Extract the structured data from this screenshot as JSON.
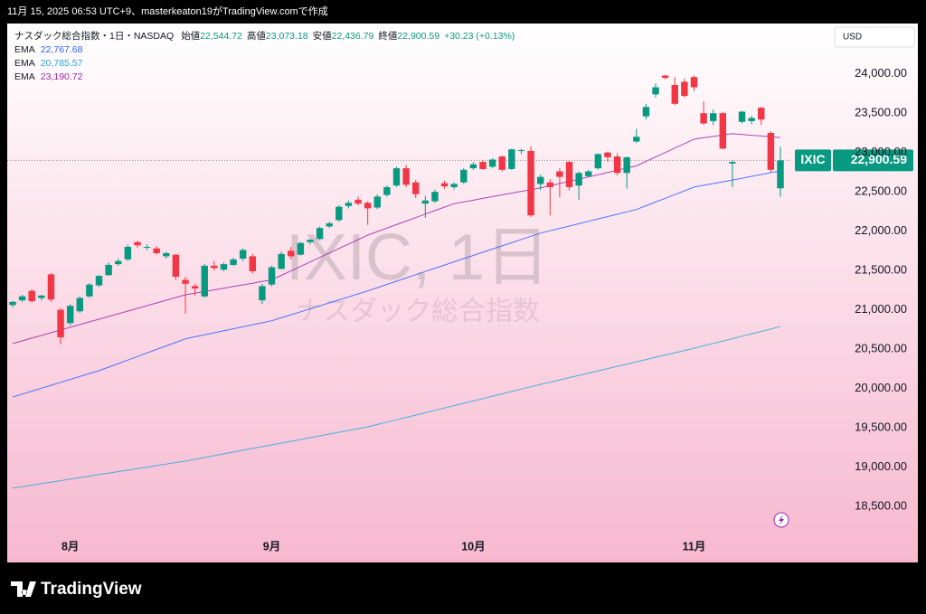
{
  "caption": "11月 15, 2025 06:53 UTC+9、masterkeaton19がTradingView.comで作成",
  "brand": "TradingView",
  "chart_data": {
    "type": "candlestick",
    "symbol_name": "ナスダック総合指数・1日・NASDAQ",
    "ohlc": [
      {
        "label": "始値",
        "value": "22,544.72"
      },
      {
        "label": "高値",
        "value": "23,073.18"
      },
      {
        "label": "安値",
        "value": "22,436.79"
      },
      {
        "label": "終値",
        "value": "22,900.59"
      }
    ],
    "change": "+30.23 (+0.13%)",
    "currency": "USD",
    "watermark": "IXIC, 1日",
    "watermark_sub": "ナスダック総合指数",
    "categories": [
      null,
      null,
      null,
      null,
      null,
      null,
      "8月",
      null,
      null,
      null,
      null,
      null,
      null,
      null,
      null,
      null,
      null,
      null,
      null,
      null,
      null,
      null,
      null,
      null,
      null,
      null,
      null,
      "9月",
      null,
      null,
      null,
      null,
      null,
      null,
      null,
      null,
      null,
      null,
      null,
      null,
      null,
      null,
      null,
      null,
      null,
      null,
      null,
      null,
      "10月",
      null,
      null,
      null,
      null,
      null,
      null,
      null,
      null,
      null,
      null,
      null,
      null,
      null,
      null,
      null,
      null,
      null,
      null,
      null,
      null,
      null,
      null,
      "11月",
      null,
      null,
      null,
      null,
      null,
      null,
      null,
      null,
      null
    ],
    "up_color": "#089981",
    "down_color": "#f23645",
    "candles": {
      "open": [
        21060,
        21120,
        21240,
        21150,
        21450,
        21000,
        20830,
        20980,
        21170,
        21310,
        21440,
        21580,
        21640,
        21860,
        21790,
        21780,
        21680,
        21700,
        21380,
        21300,
        21170,
        21560,
        21510,
        21570,
        21650,
        21680,
        21120,
        21320,
        21520,
        21750,
        21700,
        21860,
        21900,
        22060,
        22140,
        22320,
        22400,
        22360,
        22300,
        22460,
        22580,
        22800,
        22620,
        22350,
        22380,
        22610,
        22560,
        22620,
        22800,
        22880,
        22820,
        22950,
        22790,
        23020,
        23020,
        22600,
        22620,
        22760,
        22880,
        22580,
        22700,
        22800,
        23000,
        22950,
        22740,
        23140,
        23460,
        23740,
        23980,
        23860,
        23900,
        23960,
        23500,
        23400,
        23500,
        22860,
        23390,
        23400,
        23570,
        23250,
        22544.72
      ],
      "high": [
        21110,
        21190,
        21260,
        21190,
        21470,
        21020,
        21070,
        21170,
        21340,
        21440,
        21600,
        21650,
        21830,
        21880,
        21830,
        21810,
        21740,
        21710,
        21420,
        21330,
        21580,
        21620,
        21600,
        21660,
        21780,
        21710,
        21330,
        21560,
        21740,
        21800,
        21860,
        21900,
        22060,
        22120,
        22330,
        22390,
        22440,
        22380,
        22470,
        22580,
        22820,
        22840,
        22650,
        22450,
        22530,
        22640,
        22620,
        22800,
        22880,
        22900,
        22930,
        22960,
        23050,
        23050,
        23080,
        22720,
        22660,
        22800,
        22890,
        22760,
        22780,
        22990,
        23010,
        22990,
        22950,
        23300,
        23620,
        23880,
        23990,
        23960,
        23940,
        23980,
        23650,
        23550,
        23520,
        22900,
        23530,
        23470,
        23580,
        23270,
        23073.18
      ],
      "low": [
        21030,
        21100,
        21090,
        21120,
        21100,
        20560,
        20800,
        20960,
        21150,
        21290,
        21430,
        21560,
        21620,
        21790,
        21760,
        21700,
        21650,
        21380,
        20950,
        21180,
        21150,
        21500,
        21490,
        21560,
        21620,
        21460,
        21070,
        21300,
        21510,
        21640,
        21690,
        21830,
        21880,
        22040,
        22120,
        22290,
        22330,
        22080,
        22280,
        22440,
        22560,
        22560,
        22420,
        22170,
        22360,
        22540,
        22530,
        22600,
        22780,
        22780,
        22800,
        22760,
        22780,
        22980,
        22180,
        22520,
        22200,
        22430,
        22520,
        22400,
        22690,
        22780,
        22880,
        22710,
        22540,
        23120,
        23420,
        23700,
        23930,
        23600,
        23700,
        23780,
        23350,
        23350,
        23040,
        22560,
        23370,
        23360,
        23350,
        22750,
        22436.79
      ],
      "close": [
        21100,
        21170,
        21110,
        21180,
        21130,
        20650,
        21050,
        21150,
        21320,
        21430,
        21570,
        21620,
        21800,
        21820,
        21800,
        21720,
        21720,
        21420,
        21330,
        21270,
        21560,
        21530,
        21580,
        21640,
        21760,
        21490,
        21300,
        21540,
        21710,
        21680,
        21850,
        21890,
        22040,
        22100,
        22310,
        22360,
        22350,
        22290,
        22440,
        22560,
        22800,
        22590,
        22470,
        22390,
        22500,
        22570,
        22600,
        22780,
        22850,
        22790,
        22910,
        22780,
        23040,
        23030,
        22200,
        22690,
        22560,
        22690,
        22560,
        22740,
        22760,
        22980,
        22940,
        22740,
        22940,
        23200,
        23580,
        23830,
        23950,
        23620,
        23720,
        23830,
        23370,
        23500,
        23050,
        22880,
        23520,
        23440,
        23420,
        22780,
        22900.59
      ]
    },
    "lines": [
      {
        "name": "EMA",
        "color": "#2962ff",
        "value_label": "22,767.68",
        "values": [
          19890,
          19927,
          19964,
          20002,
          20039,
          20076,
          20113,
          20151,
          20188,
          20225,
          20270,
          20315,
          20360,
          20405,
          20450,
          20495,
          20540,
          20585,
          20630,
          20656,
          20681,
          20707,
          20732,
          20758,
          20783,
          20809,
          20834,
          20860,
          20898,
          20936,
          20974,
          21012,
          21050,
          21088,
          21126,
          21164,
          21202,
          21240,
          21281,
          21322,
          21363,
          21404,
          21446,
          21487,
          21528,
          21569,
          21610,
          21651,
          21691,
          21732,
          21772,
          21813,
          21853,
          21894,
          21934,
          21975,
          22005,
          22035,
          22065,
          22095,
          22125,
          22155,
          22185,
          22215,
          22245,
          22275,
          22323,
          22370,
          22418,
          22465,
          22513,
          22560,
          22583,
          22605,
          22628,
          22650,
          22673,
          22697,
          22720,
          22744,
          22767.68
        ]
      },
      {
        "name": "EMA",
        "color": "#29a8e0",
        "value_label": "20,785.57",
        "values": [
          18730,
          18749,
          18768,
          18788,
          18807,
          18826,
          18845,
          18864,
          18883,
          18903,
          18922,
          18941,
          18960,
          18979,
          18998,
          19018,
          19037,
          19056,
          19075,
          19098,
          19121,
          19144,
          19167,
          19190,
          19212,
          19235,
          19258,
          19281,
          19304,
          19327,
          19350,
          19373,
          19396,
          19418,
          19441,
          19464,
          19487,
          19510,
          19540,
          19570,
          19600,
          19630,
          19660,
          19690,
          19720,
          19750,
          19780,
          19810,
          19840,
          19870,
          19900,
          19930,
          19960,
          19990,
          20020,
          20050,
          20079,
          20108,
          20136,
          20165,
          20194,
          20223,
          20251,
          20280,
          20309,
          20338,
          20366,
          20395,
          20424,
          20453,
          20481,
          20510,
          20541,
          20571,
          20602,
          20632,
          20663,
          20694,
          20724,
          20755,
          20785.57
        ]
      },
      {
        "name": "EMA",
        "color": "#9c27b0",
        "value_label": "23,190.72",
        "values": [
          20570,
          20604,
          20639,
          20673,
          20708,
          20742,
          20777,
          20811,
          20846,
          20880,
          20914,
          20949,
          20983,
          21018,
          21052,
          21087,
          21121,
          21156,
          21190,
          21211,
          21232,
          21253,
          21274,
          21296,
          21317,
          21338,
          21359,
          21380,
          21437,
          21494,
          21551,
          21608,
          21665,
          21722,
          21779,
          21836,
          21893,
          21950,
          21994,
          22039,
          22083,
          22128,
          22172,
          22217,
          22261,
          22306,
          22350,
          22372,
          22394,
          22417,
          22439,
          22461,
          22483,
          22506,
          22528,
          22550,
          22578,
          22606,
          22634,
          22662,
          22690,
          22718,
          22746,
          22774,
          22802,
          22830,
          22887,
          22943,
          23000,
          23057,
          23113,
          23170,
          23188,
          23205,
          23223,
          23240,
          23230,
          23220,
          23210,
          23200,
          23190.72
        ]
      }
    ],
    "last_price": {
      "symbol": "IXIC",
      "value": 22900.59,
      "label": "22,900.59",
      "color": "#089981"
    },
    "ylim": [
      18130,
      24630
    ],
    "yticks": [
      {
        "value": 18500,
        "label": "18,500.00"
      },
      {
        "value": 19000,
        "label": "19,000.00"
      },
      {
        "value": 19500,
        "label": "19,500.00"
      },
      {
        "value": 20000,
        "label": "20,000.00"
      },
      {
        "value": 20500,
        "label": "20,500.00"
      },
      {
        "value": 21000,
        "label": "21,000.00"
      },
      {
        "value": 21500,
        "label": "21,500.00"
      },
      {
        "value": 22000,
        "label": "22,000.00"
      },
      {
        "value": 22500,
        "label": "22,500.00"
      },
      {
        "value": 23000,
        "label": "23,000.00"
      },
      {
        "value": 23500,
        "label": "23,500.00"
      },
      {
        "value": 24000,
        "label": "24,000.00"
      }
    ]
  }
}
